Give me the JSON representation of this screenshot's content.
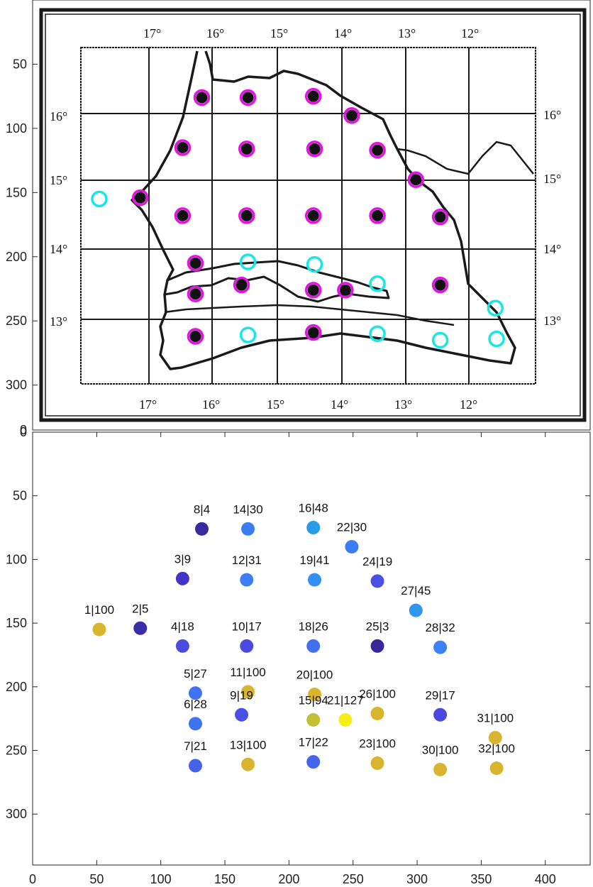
{
  "colors": {
    "marker_black": "#111111",
    "ring_magenta": "#e313e3",
    "ring_cyan": "#19e6e6",
    "map_ink": "#1a1a1a",
    "axis": "#262626"
  },
  "map_panel": {
    "lon_labels_top": [
      "17°",
      "16°",
      "15°",
      "14°",
      "13°",
      "12°"
    ],
    "lon_labels_bottom": [
      "17°",
      "16°",
      "15°",
      "14°",
      "13°",
      "12°"
    ],
    "lat_labels_left": [
      "16°",
      "15°",
      "14°",
      "13°"
    ],
    "lat_labels_right": [
      "16°",
      "15°",
      "14°",
      "13°"
    ],
    "yticks": [
      {
        "value": 50,
        "label": "50"
      },
      {
        "value": 100,
        "label": "100"
      },
      {
        "value": 150,
        "label": "150"
      },
      {
        "value": 200,
        "label": "200"
      },
      {
        "value": 250,
        "label": "250"
      },
      {
        "value": 300,
        "label": "300"
      }
    ]
  },
  "chart_data": {
    "type": "scatter",
    "xlim": [
      0,
      435
    ],
    "ylim": [
      0,
      340
    ],
    "y_reversed": true,
    "grid": false,
    "xticks": [
      0,
      50,
      100,
      150,
      200,
      250,
      300,
      350,
      400
    ],
    "yticks": [
      0,
      50,
      100,
      150,
      200,
      250,
      300
    ],
    "color_note": "colour encodes second number (low = dark indigo, 100 = gold)",
    "points": [
      {
        "id": 1,
        "x": 52,
        "y": 155,
        "label": "1|100",
        "value": 100,
        "color": "#d9b52f"
      },
      {
        "id": 2,
        "x": 84,
        "y": 154,
        "label": "2|5",
        "value": 5,
        "color": "#3a2ea8"
      },
      {
        "id": 3,
        "x": 117,
        "y": 115,
        "label": "3|9",
        "value": 9,
        "color": "#4433c9"
      },
      {
        "id": 4,
        "x": 117,
        "y": 168,
        "label": "4|18",
        "value": 18,
        "color": "#4a4ce0"
      },
      {
        "id": 5,
        "x": 127,
        "y": 205,
        "label": "5|27",
        "value": 27,
        "color": "#3f73f2"
      },
      {
        "id": 6,
        "x": 127,
        "y": 229,
        "label": "6|28",
        "value": 28,
        "color": "#3e74f0"
      },
      {
        "id": 7,
        "x": 127,
        "y": 262,
        "label": "7|21",
        "value": 21,
        "color": "#4562ea"
      },
      {
        "id": 8,
        "x": 132,
        "y": 76,
        "label": "8|4",
        "value": 4,
        "color": "#3a2aa0"
      },
      {
        "id": 9,
        "x": 163,
        "y": 222,
        "label": "9|19",
        "value": 19,
        "color": "#4951e2"
      },
      {
        "id": 10,
        "x": 167,
        "y": 168,
        "label": "10|17",
        "value": 17,
        "color": "#4a4ade"
      },
      {
        "id": 11,
        "x": 168,
        "y": 204,
        "label": "11|100",
        "value": 100,
        "color": "#d9b52f"
      },
      {
        "id": 12,
        "x": 167,
        "y": 116,
        "label": "12|31",
        "value": 31,
        "color": "#3d7ef5"
      },
      {
        "id": 13,
        "x": 168,
        "y": 261,
        "label": "13|100",
        "value": 100,
        "color": "#d9b52f"
      },
      {
        "id": 14,
        "x": 168,
        "y": 76,
        "label": "14|30",
        "value": 30,
        "color": "#3c7cf5"
      },
      {
        "id": 15,
        "x": 219,
        "y": 226,
        "label": "15|94",
        "value": 94,
        "color": "#c2bf34"
      },
      {
        "id": 16,
        "x": 219,
        "y": 75,
        "label": "16|48",
        "value": 48,
        "color": "#2a9be8"
      },
      {
        "id": 17,
        "x": 219,
        "y": 259,
        "label": "17|22",
        "value": 22,
        "color": "#4465ec"
      },
      {
        "id": 18,
        "x": 219,
        "y": 168,
        "label": "18|26",
        "value": 26,
        "color": "#4070f0"
      },
      {
        "id": 19,
        "x": 220,
        "y": 116,
        "label": "19|41",
        "value": 41,
        "color": "#3590f3"
      },
      {
        "id": 20,
        "x": 220,
        "y": 206,
        "label": "20|100",
        "value": 100,
        "color": "#d9b52f"
      },
      {
        "id": 21,
        "x": 244,
        "y": 226,
        "label": "21|127",
        "value": 127,
        "color": "#f5ec19"
      },
      {
        "id": 22,
        "x": 249,
        "y": 90,
        "label": "22|30",
        "value": 30,
        "color": "#3c7cf5"
      },
      {
        "id": 23,
        "x": 269,
        "y": 260,
        "label": "23|100",
        "value": 100,
        "color": "#d9b52f"
      },
      {
        "id": 24,
        "x": 269,
        "y": 117,
        "label": "24|19",
        "value": 19,
        "color": "#4951e2"
      },
      {
        "id": 25,
        "x": 269,
        "y": 168,
        "label": "25|3",
        "value": 3,
        "color": "#38279a"
      },
      {
        "id": 26,
        "x": 269,
        "y": 221,
        "label": "26|100",
        "value": 100,
        "color": "#d9b52f"
      },
      {
        "id": 27,
        "x": 299,
        "y": 140,
        "label": "27|45",
        "value": 45,
        "color": "#2e96ee"
      },
      {
        "id": 28,
        "x": 318,
        "y": 169,
        "label": "28|32",
        "value": 32,
        "color": "#3c81f5"
      },
      {
        "id": 29,
        "x": 318,
        "y": 222,
        "label": "29|17",
        "value": 17,
        "color": "#4a4ade"
      },
      {
        "id": 30,
        "x": 318,
        "y": 265,
        "label": "30|100",
        "value": 100,
        "color": "#d9b52f"
      },
      {
        "id": 31,
        "x": 361,
        "y": 240,
        "label": "31|100",
        "value": 100,
        "color": "#d9b52f"
      },
      {
        "id": 32,
        "x": 362,
        "y": 264,
        "label": "32|100",
        "value": 100,
        "color": "#d9b52f"
      }
    ]
  }
}
